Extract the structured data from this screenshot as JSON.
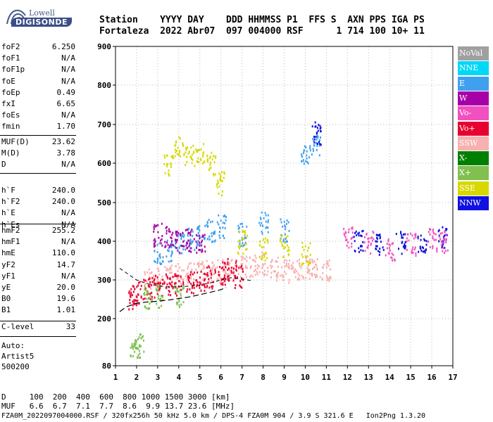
{
  "logo": {
    "line1": "Lowell",
    "line2": "DIGISONDE"
  },
  "header": {
    "row1": "Station    YYYY DAY    DDD HHMMSS P1  FFS S  AXN PPS IGA PS",
    "row2": "Fortaleza  2022 Abr07  097 004000 RSF      1 714 100 10+ 11"
  },
  "params": {
    "group1": [
      {
        "name": "foF2",
        "value": "6.250"
      },
      {
        "name": "foF1",
        "value": "N/A"
      },
      {
        "name": "foF1p",
        "value": "N/A"
      },
      {
        "name": "foE",
        "value": "N/A"
      },
      {
        "name": "foEp",
        "value": "0.49"
      },
      {
        "name": "fxI",
        "value": "6.65"
      },
      {
        "name": "foEs",
        "value": "N/A"
      },
      {
        "name": "fmin",
        "value": "1.70"
      }
    ],
    "group2": [
      {
        "name": "MUF(D)",
        "value": "23.62"
      },
      {
        "name": "M(D)",
        "value": "3.78"
      },
      {
        "name": "D",
        "value": "N/A"
      }
    ],
    "group3": [
      {
        "name": "h`F",
        "value": "240.0"
      },
      {
        "name": "h`F2",
        "value": "240.0"
      },
      {
        "name": "h`E",
        "value": "N/A"
      },
      {
        "name": "h`Es",
        "value": "N/A"
      }
    ],
    "group4": [
      {
        "name": "hmF2",
        "value": "255.2"
      },
      {
        "name": "hmF1",
        "value": "N/A"
      },
      {
        "name": "hmE",
        "value": "110.0"
      },
      {
        "name": "yF2",
        "value": "14.7"
      },
      {
        "name": "yF1",
        "value": "N/A"
      },
      {
        "name": "yE",
        "value": "20.0"
      },
      {
        "name": "B0",
        "value": "19.6"
      },
      {
        "name": "B1",
        "value": "1.01"
      }
    ],
    "group5": [
      {
        "name": "C-level",
        "value": "33"
      }
    ],
    "auto": [
      "Auto:",
      "Artist5",
      "500200"
    ]
  },
  "legend": [
    {
      "label": "NoVal",
      "color": "#a0a0a0"
    },
    {
      "label": "NNE",
      "color": "#00d8f8"
    },
    {
      "label": "E",
      "color": "#40a0f0"
    },
    {
      "label": "W",
      "color": "#a800a8"
    },
    {
      "label": "Vo-",
      "color": "#f050c0"
    },
    {
      "label": "Vo+",
      "color": "#e80030"
    },
    {
      "label": "SSW",
      "color": "#f8b0b0"
    },
    {
      "label": "X-",
      "color": "#008000"
    },
    {
      "label": "X+",
      "color": "#80c050"
    },
    {
      "label": "SSE",
      "color": "#d8d800"
    },
    {
      "label": "NNW",
      "color": "#1010e0"
    }
  ],
  "bottom": {
    "line1": "D     100  200  400  600  800 1000 1500 3000 [km]",
    "line2": "MUF   6.6  6.7  7.1  7.7  8.6  9.9 13.7 23.6 [MHz]",
    "line3": "FZA0M_2022097004000.RSF / 320fx256h 50 kHz 5.0 km / DPS-4 FZA0M 904 / 3.9 S 321.6 E   Ion2Png 1.3.20"
  },
  "chart_data": {
    "type": "scatter",
    "title": "",
    "xlabel": "",
    "ylabel": "",
    "xlim": [
      1,
      17
    ],
    "ylim": [
      80,
      900
    ],
    "x_ticks": [
      1,
      2,
      3,
      4,
      5,
      6,
      7,
      8,
      9,
      10,
      11,
      12,
      13,
      14,
      15,
      16,
      17
    ],
    "y_ticks": [
      80,
      200,
      300,
      400,
      500,
      600,
      700,
      800,
      900
    ],
    "grid": "dotted",
    "series": [
      {
        "name": "SSW",
        "color": "#f8b0b0",
        "x": [
          2.5,
          3,
          3.5,
          4,
          4.5,
          5,
          5.5,
          6,
          6.5,
          7,
          7.5,
          8,
          8.5,
          9,
          9.5,
          10,
          10.5,
          11
        ],
        "y": [
          300,
          305,
          310,
          315,
          318,
          320,
          322,
          325,
          330,
          335,
          340,
          345,
          330,
          325,
          330,
          335,
          330,
          330
        ]
      },
      {
        "name": "Vo+",
        "color": "#e80030",
        "x": [
          1.8,
          2,
          2.5,
          3,
          3.5,
          4,
          4.5,
          5,
          5.5,
          6,
          6.5,
          6.8
        ],
        "y": [
          255,
          270,
          280,
          285,
          290,
          292,
          295,
          300,
          310,
          320,
          330,
          310
        ]
      },
      {
        "name": "E",
        "color": "#40a0f0",
        "x": [
          3,
          3.5,
          4,
          4.5,
          5,
          5.5,
          6,
          7,
          8,
          9,
          10,
          10.5
        ],
        "y": [
          370,
          380,
          400,
          410,
          420,
          430,
          440,
          420,
          450,
          430,
          620,
          650
        ]
      },
      {
        "name": "SSE",
        "color": "#d8d800",
        "x": [
          3.5,
          4,
          4.5,
          5,
          5.5,
          6,
          7,
          8,
          9,
          10
        ],
        "y": [
          600,
          640,
          620,
          630,
          600,
          550,
          400,
          380,
          390,
          370
        ]
      },
      {
        "name": "NNW",
        "color": "#1010e0",
        "x": [
          10.5,
          12.5,
          13.5,
          14.5,
          15.5,
          16.5
        ],
        "y": [
          680,
          400,
          390,
          400,
          400,
          410
        ]
      },
      {
        "name": "Vo-",
        "color": "#f050c0",
        "x": [
          12,
          13,
          14,
          15,
          16,
          16.5
        ],
        "y": [
          410,
          400,
          380,
          395,
          405,
          400
        ]
      },
      {
        "name": "X+",
        "color": "#80c050",
        "x": [
          1.9,
          2.1,
          2.5,
          3,
          4
        ],
        "y": [
          133,
          133,
          255,
          260,
          262
        ]
      },
      {
        "name": "W",
        "color": "#a800a8",
        "x": [
          3,
          3.5,
          4,
          4.5,
          5
        ],
        "y": [
          418,
          410,
          400,
          405,
          395
        ]
      }
    ],
    "profile_curve": {
      "x": [
        1.2,
        1.5,
        2,
        2.5,
        3,
        3.5,
        4,
        4.5,
        5,
        5.5,
        6,
        6.25
      ],
      "y": [
        218,
        230,
        240,
        243,
        245,
        248,
        252,
        256,
        262,
        268,
        275,
        280
      ]
    },
    "upper_curve": {
      "x": [
        1.2,
        1.6,
        2,
        2.5,
        3,
        3.5,
        4,
        4.5,
        5,
        5.5,
        6,
        6.5,
        7,
        7.5
      ],
      "y": [
        330,
        315,
        300,
        290,
        285,
        282,
        282,
        284,
        287,
        292,
        300,
        306,
        302,
        298
      ]
    }
  }
}
